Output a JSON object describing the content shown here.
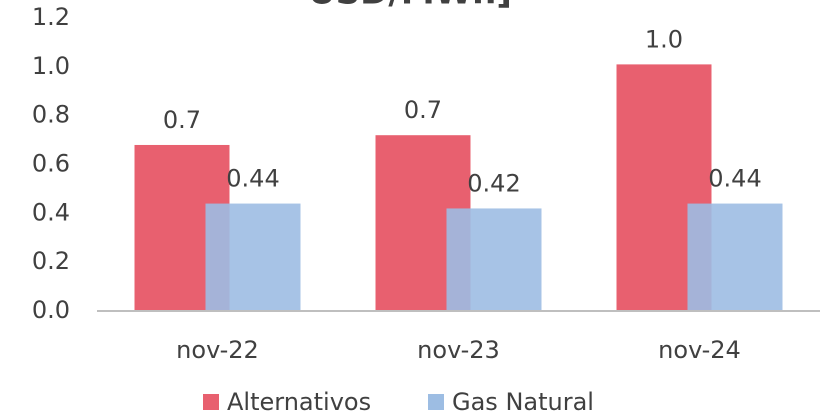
{
  "chart_data": {
    "type": "bar",
    "title": "USD/MWh]",
    "categories": [
      "nov-22",
      "nov-23",
      "nov-24"
    ],
    "series": [
      {
        "name": "Alternativos",
        "color": "#e8606f",
        "values": [
          0.68,
          0.72,
          1.01
        ],
        "value_labels": [
          "0.7",
          "0.7",
          "1.0"
        ]
      },
      {
        "name": "Gas Natural",
        "color": "#9dbde3",
        "values": [
          0.44,
          0.42,
          0.44
        ]
      }
    ],
    "ylim": [
      0,
      1.2
    ],
    "yticks": [
      {
        "value": 0,
        "label": "0.0"
      },
      0.2,
      0.4,
      0.6,
      0.8,
      {
        "value": 1,
        "label": "1.0"
      },
      1.2
    ],
    "grid": false,
    "legend": "bottom"
  }
}
